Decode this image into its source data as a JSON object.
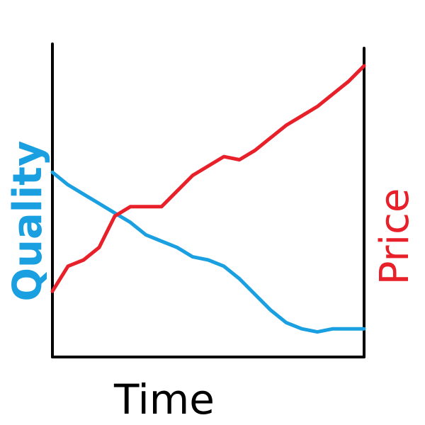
{
  "chart_data": {
    "type": "line",
    "title": "",
    "xlabel": "Time",
    "ylabel_left": "Quality",
    "ylabel_right": "Price",
    "xlim": [
      0,
      100
    ],
    "ylim": [
      0,
      100
    ],
    "grid": false,
    "legend": "none",
    "series": [
      {
        "name": "Quality",
        "axis": "left",
        "color": "#1aa0e0",
        "x": [
          0,
          5,
          10,
          15,
          20,
          25,
          30,
          35,
          40,
          45,
          50,
          55,
          60,
          65,
          70,
          75,
          80,
          85,
          90,
          95,
          100
        ],
        "y": [
          59,
          55,
          52,
          49,
          46,
          43,
          39,
          37,
          35,
          32,
          31,
          29,
          25,
          20,
          15,
          11,
          9,
          8,
          9,
          9,
          9
        ]
      },
      {
        "name": "Price",
        "axis": "right",
        "color": "#e8202a",
        "x": [
          0,
          5,
          10,
          15,
          20,
          25,
          30,
          35,
          40,
          45,
          50,
          55,
          60,
          65,
          70,
          75,
          80,
          85,
          90,
          95,
          100
        ],
        "y": [
          21,
          29,
          31,
          35,
          45,
          48,
          48,
          48,
          53,
          58,
          61,
          64,
          63,
          66,
          70,
          74,
          77,
          80,
          84,
          88,
          93
        ]
      }
    ]
  }
}
